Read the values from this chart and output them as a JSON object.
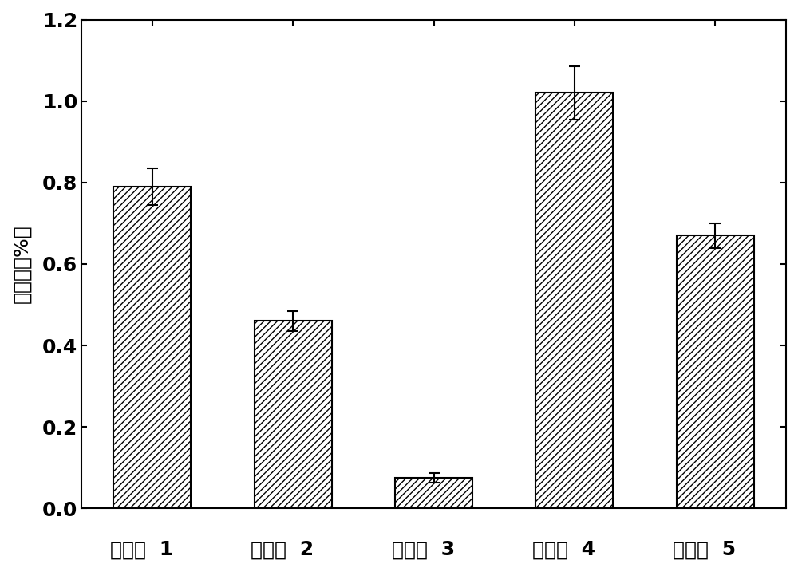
{
  "categories": [
    "实施例 1",
    "实施例 2",
    "实施例 3",
    "实施例 4",
    "实施例 5"
  ],
  "values": [
    0.79,
    0.46,
    0.075,
    1.02,
    0.67
  ],
  "errors": [
    0.045,
    0.025,
    0.012,
    0.065,
    0.03
  ],
  "ylabel": "氯含量（%）",
  "ylim": [
    0.0,
    1.2
  ],
  "yticks": [
    0.0,
    0.2,
    0.4,
    0.6,
    0.8,
    1.0,
    1.2
  ],
  "bar_color": "#ffffff",
  "bar_edgecolor": "#000000",
  "hatch": "////",
  "hatch_color": "#000000",
  "figure_width": 10.0,
  "figure_height": 7.12,
  "dpi": 100,
  "tick_fontsize": 18,
  "label_fontsize": 18,
  "axis_linewidth": 1.5,
  "bar_width": 0.55,
  "capsize": 5,
  "errorbar_linewidth": 1.5,
  "errorbar_capthick": 1.5
}
